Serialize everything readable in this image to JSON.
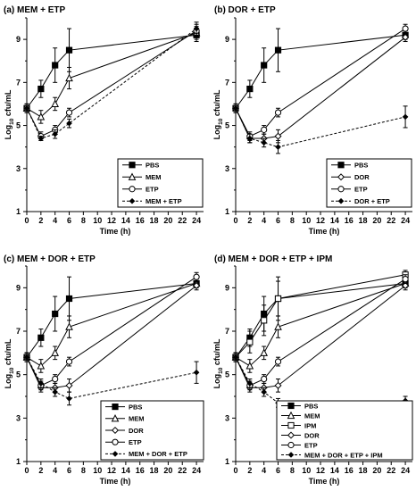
{
  "chart_data": [
    {
      "type": "line",
      "title": "(a) MEM + ETP",
      "xlabel": "Time (h)",
      "ylabel_main": "Log",
      "ylabel_sub": "10",
      "ylabel_tail": " cfu/mL",
      "xlim": [
        0,
        25
      ],
      "ylim": [
        1,
        10
      ],
      "xticks": [
        0,
        2,
        4,
        6,
        8,
        10,
        12,
        14,
        16,
        18,
        20,
        22,
        24
      ],
      "yticks": [
        1,
        3,
        5,
        7,
        9
      ],
      "legend_position": "bottom-right",
      "series": [
        {
          "name": "PBS",
          "marker": "square-filled",
          "dash": false,
          "x": [
            0,
            2,
            4,
            6,
            24
          ],
          "y": [
            5.8,
            6.7,
            7.8,
            8.5,
            9.2
          ],
          "err": [
            0.2,
            0.4,
            0.8,
            1.0,
            0.3
          ]
        },
        {
          "name": "MEM",
          "marker": "triangle-open",
          "dash": false,
          "x": [
            0,
            2,
            4,
            6,
            24
          ],
          "y": [
            5.8,
            5.4,
            6.0,
            7.2,
            9.3
          ],
          "err": [
            0.2,
            0.3,
            0.3,
            0.5,
            0.3
          ]
        },
        {
          "name": "ETP",
          "marker": "circle-open",
          "dash": false,
          "x": [
            0,
            2,
            4,
            6,
            24
          ],
          "y": [
            5.8,
            4.5,
            4.8,
            5.6,
            9.4
          ],
          "err": [
            0.2,
            0.2,
            0.2,
            0.2,
            0.3
          ]
        },
        {
          "name": "MEM + ETP",
          "marker": "diamond-filled",
          "dash": true,
          "x": [
            0,
            2,
            4,
            6,
            24
          ],
          "y": [
            5.8,
            4.4,
            4.6,
            5.1,
            9.5
          ],
          "err": [
            0.2,
            0.1,
            0.2,
            0.2,
            0.3
          ]
        }
      ]
    },
    {
      "type": "line",
      "title": "(b) DOR + ETP",
      "xlabel": "Time (h)",
      "ylabel_main": "Log",
      "ylabel_sub": "10",
      "ylabel_tail": " cfu/mL",
      "xlim": [
        0,
        25
      ],
      "ylim": [
        1,
        10
      ],
      "xticks": [
        0,
        2,
        4,
        6,
        8,
        10,
        12,
        14,
        16,
        18,
        20,
        22,
        24
      ],
      "yticks": [
        1,
        3,
        5,
        7,
        9
      ],
      "legend_position": "bottom-right",
      "series": [
        {
          "name": "PBS",
          "marker": "square-filled",
          "dash": false,
          "x": [
            0,
            2,
            4,
            6,
            24
          ],
          "y": [
            5.8,
            6.7,
            7.8,
            8.5,
            9.2
          ],
          "err": [
            0.2,
            0.4,
            0.8,
            1.0,
            0.2
          ]
        },
        {
          "name": "DOR",
          "marker": "diamond-open",
          "dash": false,
          "x": [
            0,
            2,
            4,
            6,
            24
          ],
          "y": [
            5.8,
            4.4,
            4.4,
            4.5,
            9.1
          ],
          "err": [
            0.2,
            0.2,
            0.2,
            0.3,
            0.2
          ]
        },
        {
          "name": "ETP",
          "marker": "circle-open",
          "dash": false,
          "x": [
            0,
            2,
            4,
            6,
            24
          ],
          "y": [
            5.8,
            4.5,
            4.8,
            5.6,
            9.5
          ],
          "err": [
            0.2,
            0.2,
            0.2,
            0.2,
            0.2
          ]
        },
        {
          "name": "DOR + ETP",
          "marker": "diamond-filled",
          "dash": true,
          "x": [
            0,
            2,
            4,
            6,
            24
          ],
          "y": [
            5.8,
            4.4,
            4.2,
            4.0,
            5.4
          ],
          "err": [
            0.2,
            0.2,
            0.2,
            0.3,
            0.5
          ]
        }
      ]
    },
    {
      "type": "line",
      "title": "(c) MEM + DOR + ETP",
      "xlabel": "Time (h)",
      "ylabel_main": "Log",
      "ylabel_sub": "10",
      "ylabel_tail": " cfu/mL",
      "xlim": [
        0,
        25
      ],
      "ylim": [
        1,
        10
      ],
      "xticks": [
        0,
        2,
        4,
        6,
        8,
        10,
        12,
        14,
        16,
        18,
        20,
        22,
        24
      ],
      "yticks": [
        1,
        3,
        5,
        7,
        9
      ],
      "legend_position": "bottom-right",
      "series": [
        {
          "name": "PBS",
          "marker": "square-filled",
          "dash": false,
          "x": [
            0,
            2,
            4,
            6,
            24
          ],
          "y": [
            5.8,
            6.7,
            7.8,
            8.5,
            9.2
          ],
          "err": [
            0.2,
            0.4,
            0.8,
            1.0,
            0.2
          ]
        },
        {
          "name": "MEM",
          "marker": "triangle-open",
          "dash": false,
          "x": [
            0,
            2,
            4,
            6,
            24
          ],
          "y": [
            5.8,
            5.4,
            6.0,
            7.2,
            9.2
          ],
          "err": [
            0.2,
            0.3,
            0.3,
            0.5,
            0.2
          ]
        },
        {
          "name": "DOR",
          "marker": "diamond-open",
          "dash": false,
          "x": [
            0,
            2,
            4,
            6,
            24
          ],
          "y": [
            5.8,
            4.4,
            4.4,
            4.5,
            9.1
          ],
          "err": [
            0.2,
            0.2,
            0.2,
            0.3,
            0.2
          ]
        },
        {
          "name": "ETP",
          "marker": "circle-open",
          "dash": false,
          "x": [
            0,
            2,
            4,
            6,
            24
          ],
          "y": [
            5.8,
            4.5,
            4.8,
            5.6,
            9.5
          ],
          "err": [
            0.2,
            0.2,
            0.2,
            0.2,
            0.2
          ]
        },
        {
          "name": "MEM + DOR + ETP",
          "marker": "diamond-filled",
          "dash": true,
          "x": [
            0,
            2,
            4,
            6,
            24
          ],
          "y": [
            5.8,
            4.6,
            4.2,
            3.9,
            5.1
          ],
          "err": [
            0.2,
            0.2,
            0.2,
            0.3,
            0.5
          ]
        }
      ]
    },
    {
      "type": "line",
      "title": "(d) MEM + DOR + ETP + IPM",
      "xlabel": "Time (h)",
      "ylabel_main": "Log",
      "ylabel_sub": "10",
      "ylabel_tail": " cfu/mL",
      "xlim": [
        0,
        25
      ],
      "ylim": [
        1,
        10
      ],
      "xticks": [
        0,
        2,
        4,
        6,
        8,
        10,
        12,
        14,
        16,
        18,
        20,
        22,
        24
      ],
      "yticks": [
        1,
        3,
        5,
        7,
        9
      ],
      "legend_position": "bottom-right",
      "series": [
        {
          "name": "PBS",
          "marker": "square-filled",
          "dash": false,
          "x": [
            0,
            2,
            4,
            6,
            24
          ],
          "y": [
            5.8,
            6.7,
            7.8,
            8.5,
            9.2
          ],
          "err": [
            0.2,
            0.4,
            0.8,
            1.0,
            0.2
          ]
        },
        {
          "name": "MEM",
          "marker": "triangle-open",
          "dash": false,
          "x": [
            0,
            2,
            4,
            6,
            24
          ],
          "y": [
            5.8,
            5.4,
            6.0,
            7.2,
            9.2
          ],
          "err": [
            0.2,
            0.3,
            0.3,
            0.5,
            0.2
          ]
        },
        {
          "name": "IPM",
          "marker": "square-open",
          "dash": false,
          "x": [
            0,
            2,
            4,
            6,
            24
          ],
          "y": [
            5.8,
            6.5,
            7.5,
            8.5,
            9.6
          ],
          "err": [
            0.2,
            0.5,
            0.7,
            0.8,
            0.2
          ]
        },
        {
          "name": "DOR",
          "marker": "diamond-open",
          "dash": false,
          "x": [
            0,
            2,
            4,
            6,
            24
          ],
          "y": [
            5.8,
            4.4,
            4.4,
            4.5,
            9.1
          ],
          "err": [
            0.2,
            0.2,
            0.2,
            0.3,
            0.2
          ]
        },
        {
          "name": "ETP",
          "marker": "circle-open",
          "dash": false,
          "x": [
            0,
            2,
            4,
            6,
            24
          ],
          "y": [
            5.8,
            4.5,
            4.8,
            5.6,
            9.4
          ],
          "err": [
            0.2,
            0.2,
            0.2,
            0.2,
            0.2
          ]
        },
        {
          "name": "MEM + DOR + ETP + IPM",
          "marker": "diamond-filled",
          "dash": true,
          "x": [
            0,
            2,
            4,
            6,
            24
          ],
          "y": [
            5.8,
            4.6,
            4.2,
            3.7,
            3.8
          ],
          "err": [
            0.2,
            0.2,
            0.2,
            0.2,
            0.2
          ]
        }
      ]
    }
  ]
}
